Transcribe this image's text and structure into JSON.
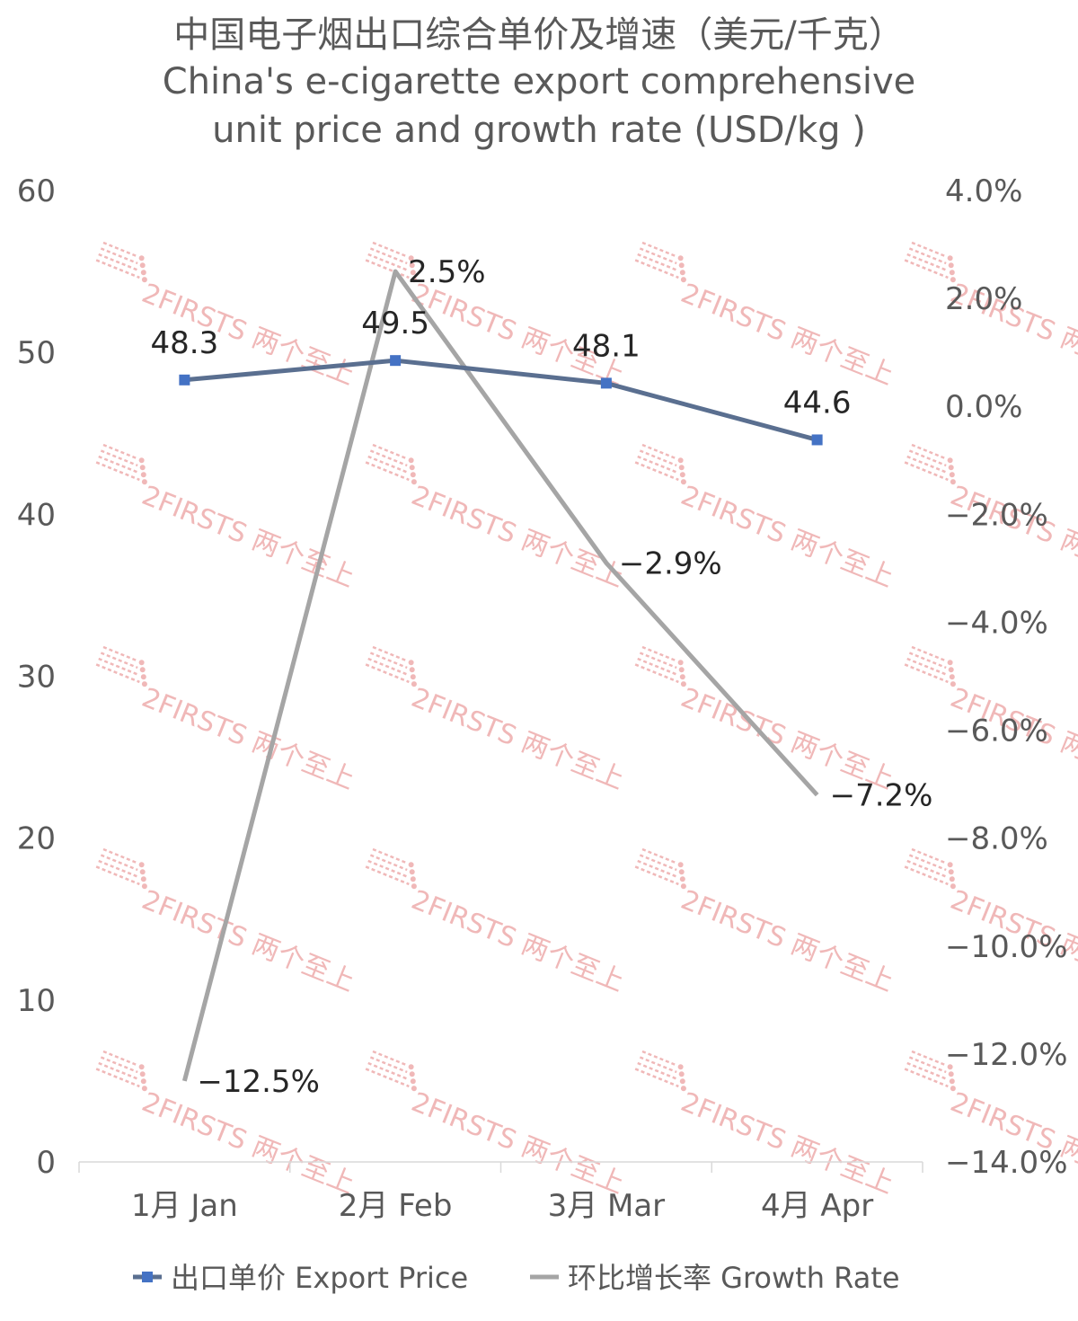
{
  "chart_data": {
    "type": "line",
    "title_zh": "中国电子烟出口综合单价及增速（美元/千克）",
    "title_en_line1": "China's e-cigarette export comprehensive",
    "title_en_line2": "unit price and growth rate (USD/kg )",
    "categories": [
      "1月 Jan",
      "2月 Feb",
      "3月 Mar",
      "4月 Apr"
    ],
    "y_left": {
      "min": 0,
      "max": 60,
      "ticks": [
        0,
        10,
        20,
        30,
        40,
        50,
        60
      ]
    },
    "y_right": {
      "min": -14,
      "max": 4,
      "ticks": [
        -14,
        -12,
        -10,
        -8,
        -6,
        -4,
        -2,
        0,
        2,
        4
      ],
      "tick_labels": [
        "−14.0%",
        "−12.0%",
        "−10.0%",
        "−8.0%",
        "−6.0%",
        "−4.0%",
        "−2.0%",
        "0.0%",
        "2.0%",
        "4.0%"
      ]
    },
    "series": [
      {
        "name": "出口单价 Export Price",
        "axis": "left",
        "color": "#5a6f90",
        "marker_color": "#4472c4",
        "values": [
          48.3,
          49.5,
          48.1,
          44.6
        ],
        "labels": [
          "48.3",
          "49.5",
          "48.1",
          "44.6"
        ]
      },
      {
        "name": "环比增长率 Growth Rate",
        "axis": "right",
        "color": "#a5a5a5",
        "values": [
          -12.5,
          2.5,
          -2.9,
          -7.2
        ],
        "labels": [
          "−12.5%",
          "2.5%",
          "−2.9%",
          "−7.2%"
        ]
      }
    ],
    "legend_position": "bottom",
    "grid": false,
    "watermark": "2FIRSTS 两个至上"
  }
}
